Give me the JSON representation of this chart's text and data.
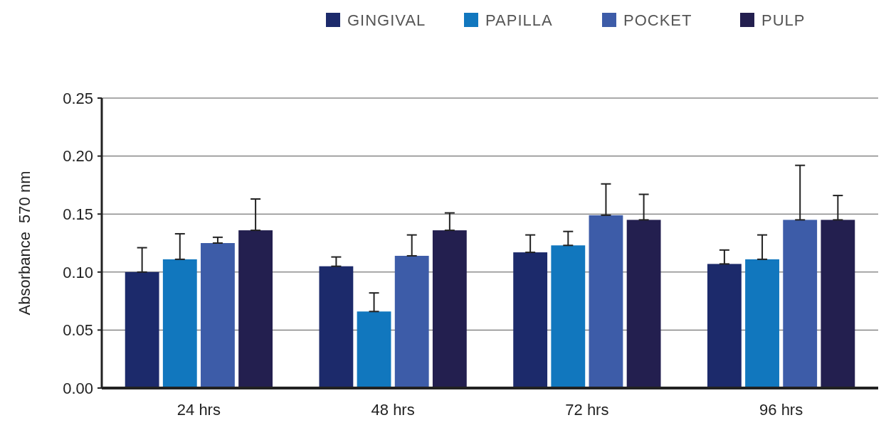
{
  "chart_data": {
    "type": "bar",
    "ylabel": "Absorbance  570 nm",
    "categories": [
      "24 hrs",
      "48 hrs",
      "72 hrs",
      "96 hrs"
    ],
    "series": [
      {
        "name": "GINGIVAL",
        "color": "#1c2a6b",
        "values": [
          0.1,
          0.105,
          0.117,
          0.107
        ],
        "errors": [
          [
            0.1,
            0.121
          ],
          [
            0.105,
            0.113
          ],
          [
            0.117,
            0.132
          ],
          [
            0.107,
            0.119
          ]
        ]
      },
      {
        "name": "PAPILLA",
        "color": "#1177be",
        "values": [
          0.111,
          0.066,
          0.123,
          0.111
        ],
        "errors": [
          [
            0.111,
            0.133
          ],
          [
            0.066,
            0.082
          ],
          [
            0.123,
            0.135
          ],
          [
            0.111,
            0.132
          ]
        ]
      },
      {
        "name": "POCKET",
        "color": "#3d5ca8",
        "values": [
          0.125,
          0.114,
          0.149,
          0.145
        ],
        "errors": [
          [
            0.125,
            0.13
          ],
          [
            0.114,
            0.132
          ],
          [
            0.149,
            0.176
          ],
          [
            0.145,
            0.192
          ]
        ]
      },
      {
        "name": "PULP",
        "color": "#231f4f",
        "values": [
          0.136,
          0.136,
          0.145,
          0.145
        ],
        "errors": [
          [
            0.136,
            0.163
          ],
          [
            0.136,
            0.151
          ],
          [
            0.145,
            0.167
          ],
          [
            0.145,
            0.166
          ]
        ]
      }
    ],
    "ylim": [
      0,
      0.25
    ],
    "yticks": [
      {
        "value": 0,
        "label": "0.00"
      },
      {
        "value": 0.05,
        "label": "0.05"
      },
      {
        "value": 0.1,
        "label": "0.10"
      },
      {
        "value": 0.15,
        "label": "0.15"
      },
      {
        "value": 0.2,
        "label": "0.20"
      },
      {
        "value": 0.25,
        "label": "0.25"
      }
    ],
    "grid": "y",
    "legend": "top right"
  }
}
